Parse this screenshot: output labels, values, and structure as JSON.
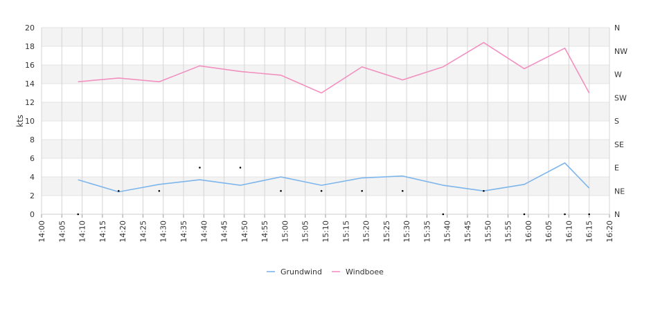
{
  "chart_data": {
    "type": "line",
    "ylabel": "kts",
    "ylim": [
      0,
      20
    ],
    "y_ticks": [
      0,
      2,
      4,
      6,
      8,
      10,
      12,
      14,
      16,
      18,
      20
    ],
    "xlim": [
      "14:00",
      "16:20"
    ],
    "x_ticks": [
      "14:00",
      "14:05",
      "14:10",
      "14:15",
      "14:20",
      "14:25",
      "14:30",
      "14:35",
      "14:40",
      "14:45",
      "14:50",
      "14:55",
      "15:00",
      "15:05",
      "15:10",
      "15:15",
      "15:20",
      "15:25",
      "15:30",
      "15:35",
      "15:40",
      "15:45",
      "15:50",
      "15:55",
      "16:00",
      "16:05",
      "16:10",
      "16:15",
      "16:20"
    ],
    "y2_ticks": [
      "N",
      "NE",
      "E",
      "SE",
      "S",
      "SW",
      "W",
      "NW",
      "N"
    ],
    "grid": true,
    "legend": "bottom-center",
    "x": [
      "14:09",
      "14:19",
      "14:29",
      "14:39",
      "14:49",
      "14:59",
      "15:09",
      "15:19",
      "15:29",
      "15:39",
      "15:49",
      "15:59",
      "16:09",
      "16:15"
    ],
    "series": [
      {
        "name": "Grundwind",
        "color": "#7cb5ec",
        "values": [
          3.7,
          2.4,
          3.2,
          3.7,
          3.1,
          4.0,
          3.1,
          3.9,
          4.1,
          3.1,
          2.5,
          3.2,
          5.5,
          2.8
        ]
      },
      {
        "name": "Windboee",
        "color": "#f28fbf",
        "values": [
          14.2,
          14.6,
          14.2,
          15.9,
          15.3,
          14.9,
          13.0,
          15.8,
          14.4,
          15.8,
          18.4,
          15.6,
          17.8,
          13.0
        ]
      }
    ],
    "direction_dots": {
      "x": [
        "14:09",
        "14:19",
        "14:29",
        "14:39",
        "14:49",
        "14:59",
        "15:09",
        "15:19",
        "15:29",
        "15:39",
        "15:49",
        "15:59",
        "16:09",
        "16:15"
      ],
      "values": [
        "N",
        "NE",
        "NE",
        "E",
        "E",
        "NE",
        "NE",
        "NE",
        "NE",
        "N",
        "NE",
        "N",
        "N",
        "N"
      ]
    }
  }
}
